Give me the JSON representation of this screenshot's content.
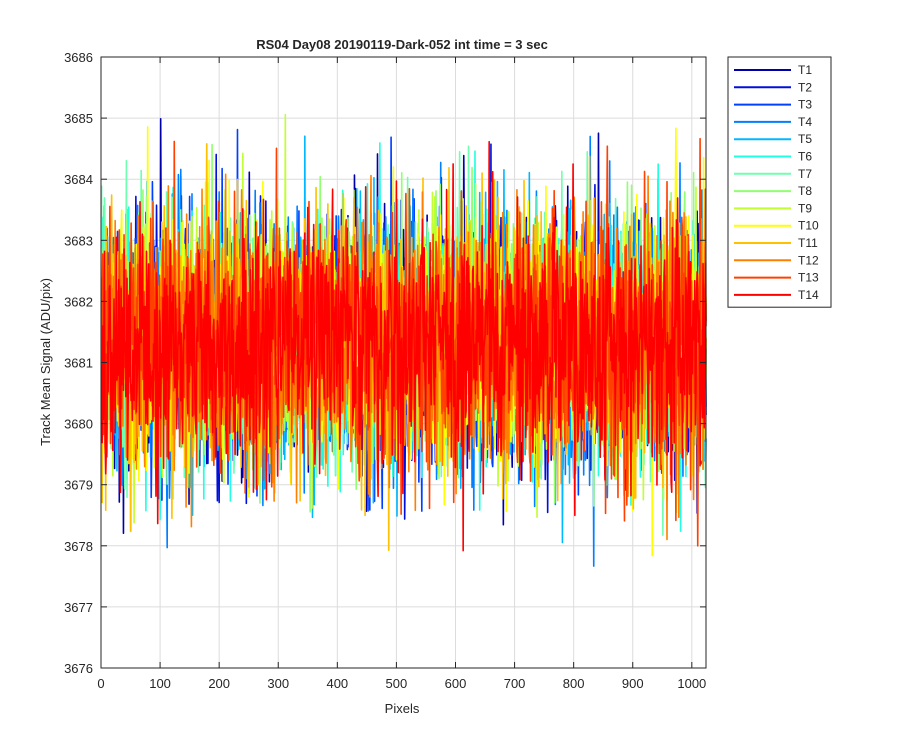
{
  "chart_data": {
    "type": "line",
    "title": "RS04 Day08 20190119-Dark-052 int time = 3 sec",
    "xlabel": "Pixels",
    "ylabel": "Track Mean Signal (ADU/pix)",
    "xlim": [
      0,
      1024
    ],
    "ylim": [
      3676,
      3686
    ],
    "xticks": [
      0,
      100,
      200,
      300,
      400,
      500,
      600,
      700,
      800,
      900,
      1000
    ],
    "yticks": [
      3676,
      3677,
      3678,
      3679,
      3680,
      3681,
      3682,
      3683,
      3684,
      3685,
      3686
    ],
    "grid": true,
    "legend_position": "outside-top-right",
    "n_points": 1024,
    "noise_summary": "dense random traces around mean ~3681.3, spread roughly 3677 to 3685",
    "series": [
      {
        "name": "T1",
        "color": "#0000a8",
        "mean": 3681.3,
        "std": 1.0
      },
      {
        "name": "T2",
        "color": "#0010d9",
        "mean": 3681.3,
        "std": 1.0
      },
      {
        "name": "T3",
        "color": "#0040ff",
        "mean": 3681.3,
        "std": 1.0
      },
      {
        "name": "T4",
        "color": "#0080ff",
        "mean": 3681.3,
        "std": 1.0
      },
      {
        "name": "T5",
        "color": "#00b8ff",
        "mean": 3681.3,
        "std": 1.0
      },
      {
        "name": "T6",
        "color": "#20ffdf",
        "mean": 3681.3,
        "std": 1.0
      },
      {
        "name": "T7",
        "color": "#70ffb0",
        "mean": 3681.3,
        "std": 1.0
      },
      {
        "name": "T8",
        "color": "#90ff70",
        "mean": 3681.3,
        "std": 1.0
      },
      {
        "name": "T9",
        "color": "#c0ff30",
        "mean": 3681.3,
        "std": 1.0
      },
      {
        "name": "T10",
        "color": "#ffff00",
        "mean": 3681.3,
        "std": 1.0
      },
      {
        "name": "T11",
        "color": "#ffc000",
        "mean": 3681.3,
        "std": 1.0
      },
      {
        "name": "T12",
        "color": "#ff8000",
        "mean": 3681.3,
        "std": 1.0
      },
      {
        "name": "T13",
        "color": "#ff4000",
        "mean": 3681.3,
        "std": 1.0
      },
      {
        "name": "T14",
        "color": "#ff0000",
        "mean": 3681.3,
        "std": 1.0
      }
    ]
  }
}
